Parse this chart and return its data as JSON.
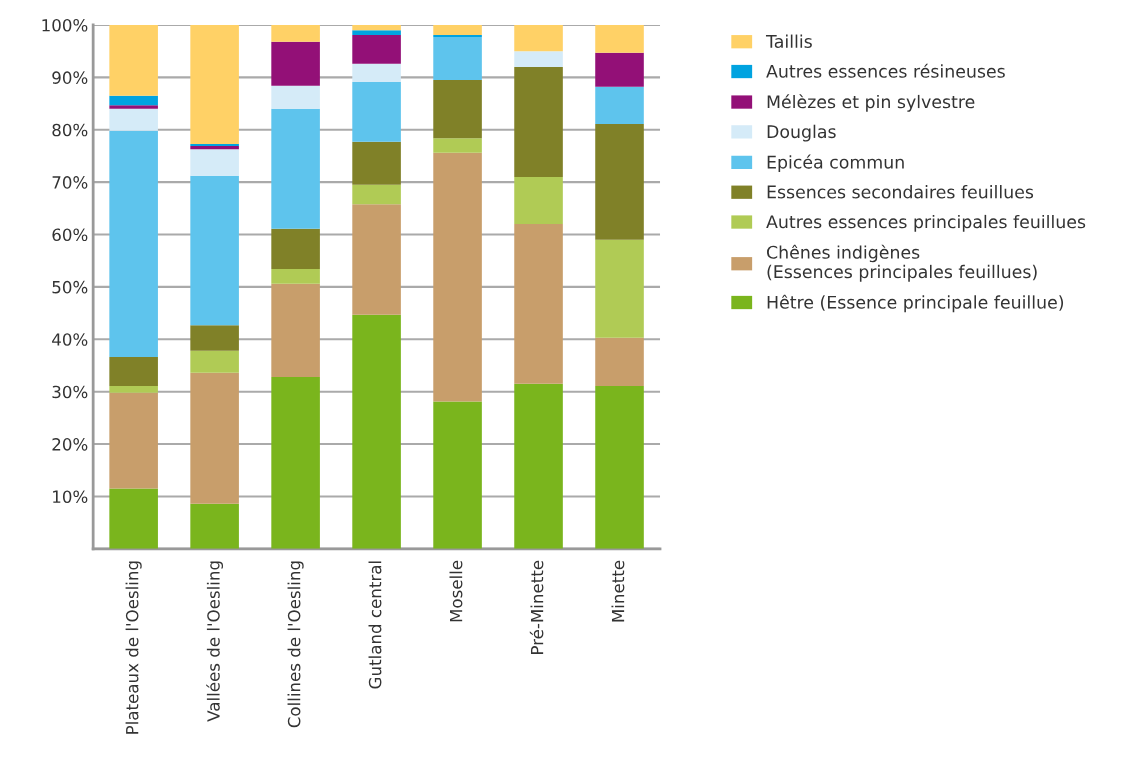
{
  "chart_data": {
    "type": "bar",
    "stacked": true,
    "categories": [
      "Plateaux de l'Oesling",
      "Vallées de l'Oesling",
      "Collines de l'Oesling",
      "Gutland central",
      "Moselle",
      "Pré-Minette",
      "Minette"
    ],
    "series": [
      {
        "name": "Hêtre (Essence principale feuillue)",
        "color": "#7ab51d",
        "values": [
          11.5,
          8.6,
          32.8,
          44.7,
          28.1,
          31.5,
          31.1
        ]
      },
      {
        "name": "Chênes indigènes\n(Essences principales feuillues)",
        "color": "#c89e6b",
        "values": [
          18.3,
          25.0,
          17.8,
          21.1,
          47.5,
          30.5,
          9.2
        ]
      },
      {
        "name": "Autres essences principales feuillues",
        "color": "#b0cb55",
        "values": [
          1.3,
          4.2,
          2.8,
          3.7,
          2.8,
          9.0,
          18.7
        ]
      },
      {
        "name": "Essences secondaires feuillues",
        "color": "#808128",
        "values": [
          5.5,
          4.9,
          7.7,
          8.2,
          11.1,
          21.0,
          22.1
        ]
      },
      {
        "name": "Epicéa commun",
        "color": "#5ec4ed",
        "values": [
          43.2,
          28.5,
          22.9,
          11.4,
          8.2,
          null,
          7.1
        ]
      },
      {
        "name": "Douglas",
        "color": "#d5ebf8",
        "values": [
          4.2,
          5.1,
          4.4,
          3.5,
          null,
          3.0,
          null
        ]
      },
      {
        "name": "Mélèzes et pin sylvestre",
        "color": "#931077",
        "values": [
          0.7,
          0.6,
          8.4,
          5.5,
          null,
          null,
          6.5
        ]
      },
      {
        "name": "Autres essences résineuses",
        "color": "#00a3e0",
        "values": [
          1.8,
          0.4,
          null,
          0.9,
          0.4,
          null,
          null
        ]
      },
      {
        "name": "Taillis",
        "color": "#ffd166",
        "values": [
          13.5,
          22.7,
          3.2,
          1.0,
          1.9,
          5.0,
          5.3
        ]
      }
    ],
    "ylim": [
      0,
      100
    ],
    "yticks": [
      {
        "value": 0,
        "label": null
      },
      {
        "value": 10,
        "label": "10%"
      },
      {
        "value": 20,
        "label": "20%"
      },
      {
        "value": 30,
        "label": "30%"
      },
      {
        "value": 40,
        "label": "40%"
      },
      {
        "value": 50,
        "label": "50%"
      },
      {
        "value": 60,
        "label": "60%"
      },
      {
        "value": 70,
        "label": "70%"
      },
      {
        "value": 80,
        "label": "80%"
      },
      {
        "value": 90,
        "label": "90%"
      },
      {
        "value": 100,
        "label": "100%"
      }
    ],
    "grid": "y",
    "legend": "right"
  }
}
